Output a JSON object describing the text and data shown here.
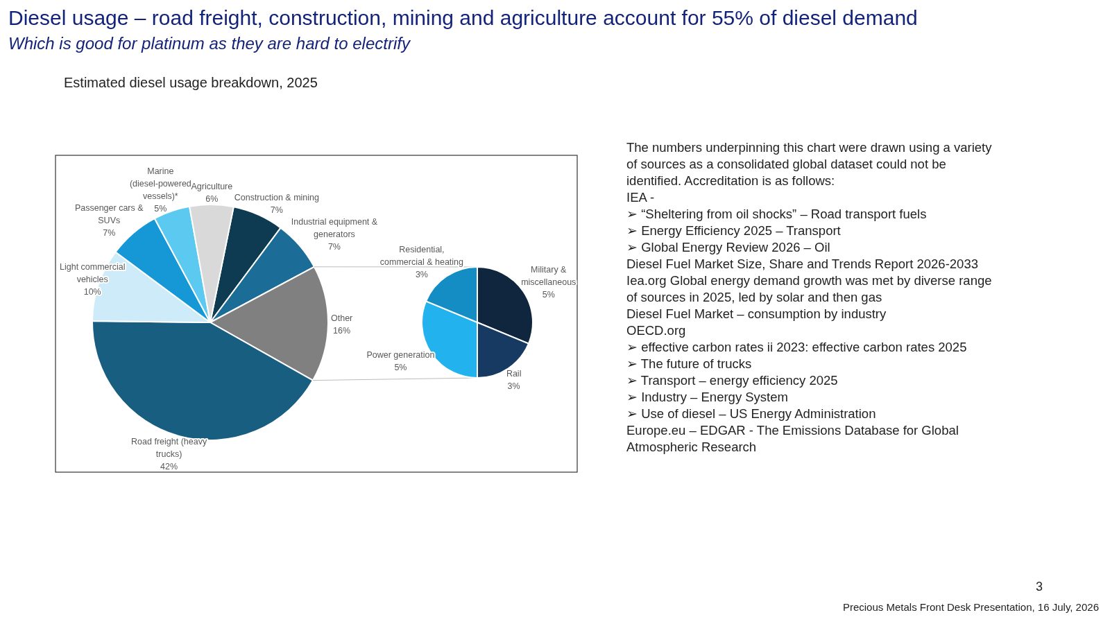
{
  "chart_data": [
    {
      "type": "pie",
      "title": "Diesel usage – road freight, construction, mining and agriculture account for 55% of diesel demand",
      "subtitle": "Which is good for platinum as they are hard to electrify",
      "annotations": [
        "Estimated diesel usage breakdown, 2025",
        "3",
        "Precious Metals Front Desk Presentation, 16 July, 2026"
      ],
      "categories": [
        "Construction & mining",
        "Industrial equipment & generators",
        "Other",
        "Road freight (heavy trucks)",
        "Light commercial vehicles",
        "Passenger cars & SUVs",
        "Marine (diesel-powered vessels)*",
        "Agriculture"
      ],
      "values": [
        7,
        7,
        16,
        42,
        10,
        7,
        5,
        6
      ],
      "colors": [
        "#0e3a52",
        "#1b6d98",
        "#808080",
        "#175e80",
        "#cdebf8",
        "#1598d5",
        "#5cc9f1",
        "#d9d9d9"
      ],
      "value_labels": [
        "7%",
        "7%",
        "16%",
        "42%",
        "10%",
        "7%",
        "5%",
        "6%"
      ]
    },
    {
      "type": "pie",
      "categories": [
        "Military & miscellaneous",
        "Rail",
        "Power generation",
        "Residential, commercial & heating"
      ],
      "values": [
        5,
        3,
        5,
        3
      ],
      "colors": [
        "#10263f",
        "#173a63",
        "#22b3ee",
        "#138dc4"
      ],
      "value_labels": [
        "5%",
        "3%",
        "5%",
        "3%"
      ]
    },
    {
      "type": "other",
      "annotations": [
        "The numbers underpinning this chart were drawn using a variety of sources as a consolidated global dataset could not be identified.  Accreditation is as follows:",
        "IEA -",
        "➢ “Sheltering from oil shocks” – Road transport fuels",
        "➢ Energy Efficiency 2025 – Transport",
        "➢ Global Energy Review 2026 – Oil",
        "Diesel Fuel Market Size, Share and Trends Report 2026-2033",
        "Iea.org Global energy demand growth was met by diverse range of sources in 2025, led by solar and then gas",
        "Diesel Fuel Market – consumption by industry",
        "OECD.org",
        "➢ effective carbon rates ii 2023: effective carbon rates 2025",
        "➢ The future of trucks",
        "➢ Transport – energy efficiency 2025",
        "➢ Industry – Energy System",
        "➢ Use of diesel – US Energy Administration",
        "Europe.eu – EDGAR  - The Emissions Database for Global Atmospheric Research"
      ]
    }
  ]
}
